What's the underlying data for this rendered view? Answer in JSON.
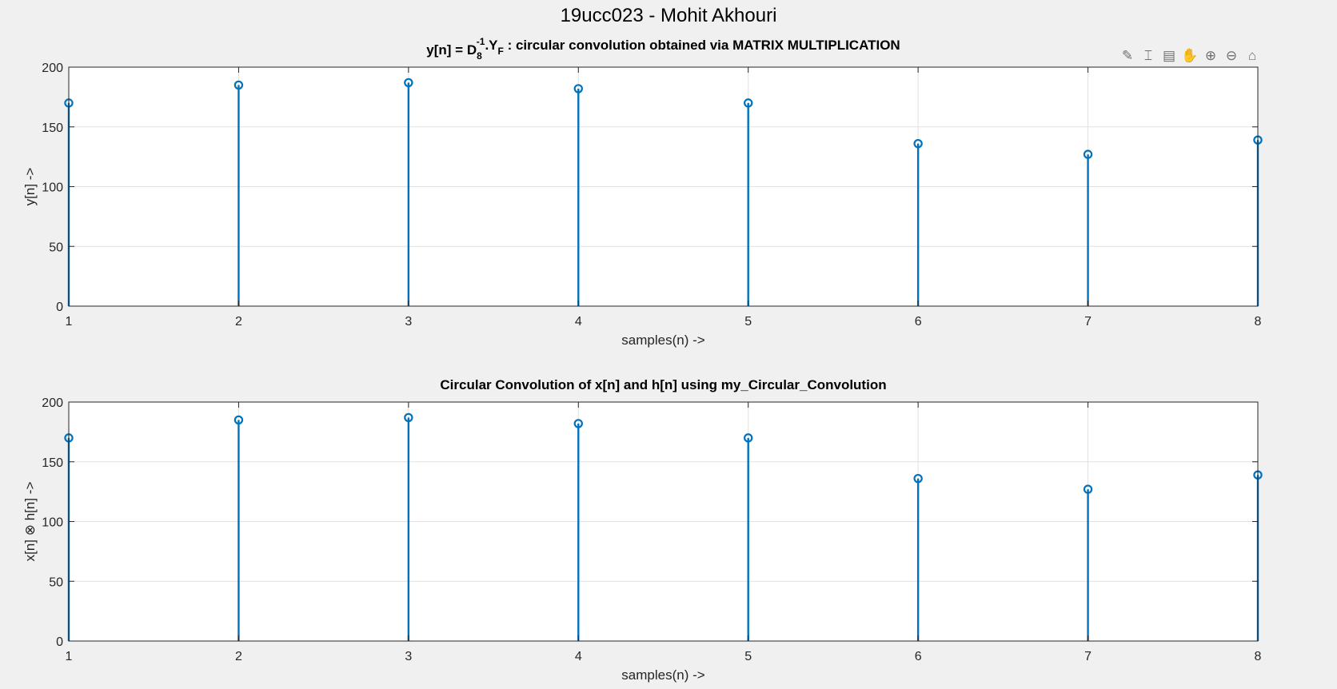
{
  "figure": {
    "sgtitle": "19ucc023 - Mohit Akhouri",
    "toolbar": [
      {
        "icon": "brush-icon",
        "glyph": "✎"
      },
      {
        "icon": "data-cursor-icon",
        "glyph": "⌶"
      },
      {
        "icon": "insert-legend-icon",
        "glyph": "▤"
      },
      {
        "icon": "pan-icon",
        "glyph": "✋"
      },
      {
        "icon": "zoom-in-icon",
        "glyph": "⊕"
      },
      {
        "icon": "zoom-out-icon",
        "glyph": "⊖"
      },
      {
        "icon": "home-icon",
        "glyph": "⌂"
      }
    ]
  },
  "colors": {
    "stem": "#0072BD",
    "grid": "#e1e1e1",
    "axes_bg": "#ffffff",
    "figure_bg": "#f0f0f0"
  },
  "chart_data": [
    {
      "type": "stem",
      "title": {
        "main": "y[n] = D",
        "sub1": "8",
        "sup1": "-1",
        "mid": ".Y",
        "sub2": "F",
        "tail": " : circular convolution obtained via MATRIX MULTIPLICATION"
      },
      "xlabel": "samples(n) ->",
      "ylabel": "y[n] ->",
      "x": [
        1,
        2,
        3,
        4,
        5,
        6,
        7,
        8
      ],
      "y": [
        170,
        185,
        187,
        182,
        170,
        136,
        127,
        139
      ],
      "xlim": [
        1,
        8
      ],
      "ylim": [
        0,
        200
      ],
      "xticks": [
        1,
        2,
        3,
        4,
        5,
        6,
        7,
        8
      ],
      "yticks": [
        0,
        50,
        100,
        150,
        200
      ],
      "grid": true
    },
    {
      "type": "stem",
      "title": "Circular Convolution of x[n] and h[n] using my_Circular_Convolution",
      "xlabel": "samples(n) ->",
      "ylabel": "x[n] ⊗ h[n] ->",
      "x": [
        1,
        2,
        3,
        4,
        5,
        6,
        7,
        8
      ],
      "y": [
        170,
        185,
        187,
        182,
        170,
        136,
        127,
        139
      ],
      "xlim": [
        1,
        8
      ],
      "ylim": [
        0,
        200
      ],
      "xticks": [
        1,
        2,
        3,
        4,
        5,
        6,
        7,
        8
      ],
      "yticks": [
        0,
        50,
        100,
        150,
        200
      ],
      "grid": true
    }
  ]
}
